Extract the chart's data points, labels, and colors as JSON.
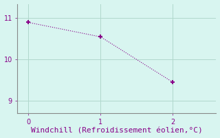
{
  "x": [
    0,
    1,
    2
  ],
  "y": [
    10.9,
    10.55,
    9.45
  ],
  "line_color": "#880088",
  "marker": "+",
  "marker_size": 5,
  "marker_linewidth": 1.5,
  "background_color": "#d8f5f0",
  "xlabel": "Windchill (Refroidissement éolien,°C)",
  "xlabel_color": "#880088",
  "xlabel_fontsize": 8,
  "tick_color": "#880088",
  "tick_labelsize": 7,
  "xlim": [
    -0.15,
    2.6
  ],
  "ylim": [
    8.7,
    11.35
  ],
  "yticks": [
    9,
    10,
    11
  ],
  "xticks": [
    0,
    1,
    2
  ],
  "grid_color": "#b0d8cc",
  "spine_color": "#888888",
  "figsize": [
    3.2,
    2.0
  ],
  "dpi": 100
}
